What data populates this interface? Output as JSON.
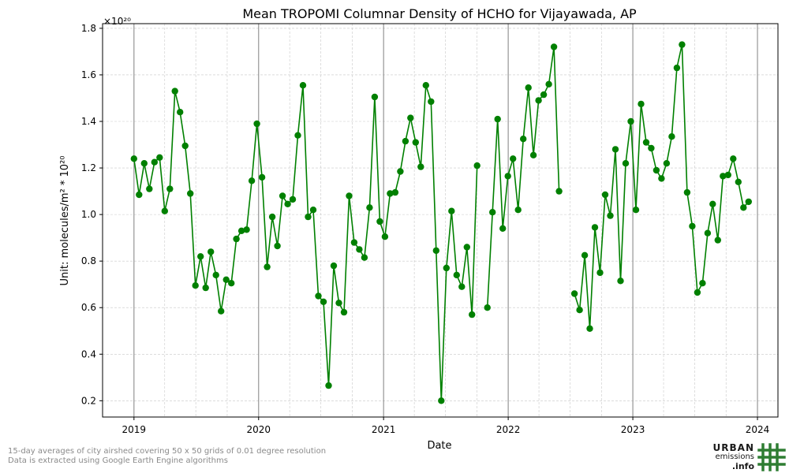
{
  "footer": {
    "note_line1": "15-day averages of city airshed covering 50 x 50 grids of 0.01 degree resolution",
    "note_line2": "Data is extracted using Google Earth Engine algorithms"
  },
  "logo": {
    "word1": "URBAN",
    "word2": "emissions",
    "word3": ".info",
    "accent": "#2e7d32"
  },
  "chart_data": {
    "type": "line",
    "title": "Mean TROPOMI Columnar Density of HCHO for Vijayawada, AP",
    "xlabel": "Date",
    "ylabel": "Unit: molecules/m² * 10²⁰",
    "y_multiplier_label": "×10²⁰",
    "x_ticks": [
      "2019",
      "2020",
      "2021",
      "2022",
      "2023",
      "2024"
    ],
    "y_ticks": [
      "0.2",
      "0.4",
      "0.6",
      "0.8",
      "1.0",
      "1.2",
      "1.4",
      "1.6",
      "1.8"
    ],
    "xlim": [
      "2018-10-01",
      "2024-03-01"
    ],
    "ylim": [
      0.13,
      1.82
    ],
    "grid": true,
    "series_color": "#008000",
    "series": [
      {
        "points": [
          [
            "2019-01-01",
            1.24
          ],
          [
            "2019-01-16",
            1.085
          ],
          [
            "2019-01-31",
            1.22
          ],
          [
            "2019-02-15",
            1.11
          ],
          [
            "2019-03-02",
            1.225
          ],
          [
            "2019-03-17",
            1.245
          ],
          [
            "2019-04-01",
            1.015
          ],
          [
            "2019-04-16",
            1.11
          ],
          [
            "2019-05-01",
            1.53
          ],
          [
            "2019-05-16",
            1.44
          ],
          [
            "2019-05-31",
            1.295
          ],
          [
            "2019-06-15",
            1.09
          ],
          [
            "2019-06-30",
            0.695
          ],
          [
            "2019-07-15",
            0.82
          ],
          [
            "2019-07-30",
            0.685
          ],
          [
            "2019-08-14",
            0.84
          ],
          [
            "2019-08-29",
            0.74
          ],
          [
            "2019-09-13",
            0.585
          ],
          [
            "2019-09-28",
            0.72
          ],
          [
            "2019-10-13",
            0.705
          ],
          [
            "2019-10-28",
            0.895
          ],
          [
            "2019-11-12",
            0.93
          ],
          [
            "2019-11-27",
            0.935
          ],
          [
            "2019-12-12",
            1.145
          ],
          [
            "2019-12-27",
            1.39
          ],
          [
            "2020-01-11",
            1.16
          ],
          [
            "2020-01-26",
            0.775
          ],
          [
            "2020-02-10",
            0.99
          ],
          [
            "2020-02-25",
            0.865
          ],
          [
            "2020-03-11",
            1.08
          ],
          [
            "2020-03-26",
            1.045
          ],
          [
            "2020-04-10",
            1.065
          ],
          [
            "2020-04-25",
            1.34
          ],
          [
            "2020-05-10",
            1.555
          ],
          [
            "2020-05-25",
            0.99
          ],
          [
            "2020-06-09",
            1.02
          ],
          [
            "2020-06-24",
            0.65
          ],
          [
            "2020-07-09",
            0.625
          ],
          [
            "2020-07-24",
            0.265
          ],
          [
            "2020-08-08",
            0.78
          ],
          [
            "2020-08-23",
            0.62
          ],
          [
            "2020-09-07",
            0.58
          ],
          [
            "2020-09-22",
            1.08
          ],
          [
            "2020-10-07",
            0.88
          ],
          [
            "2020-10-22",
            0.85
          ],
          [
            "2020-11-06",
            0.815
          ],
          [
            "2020-11-21",
            1.03
          ],
          [
            "2020-12-06",
            1.505
          ],
          [
            "2020-12-21",
            0.97
          ],
          [
            "2021-01-05",
            0.905
          ],
          [
            "2021-01-20",
            1.09
          ],
          [
            "2021-02-04",
            1.095
          ],
          [
            "2021-02-19",
            1.185
          ],
          [
            "2021-03-06",
            1.315
          ],
          [
            "2021-03-21",
            1.415
          ],
          [
            "2021-04-05",
            1.31
          ],
          [
            "2021-04-20",
            1.205
          ],
          [
            "2021-05-05",
            1.555
          ],
          [
            "2021-05-20",
            1.485
          ],
          [
            "2021-06-04",
            0.845
          ],
          [
            "2021-06-19",
            0.2
          ],
          [
            "2021-07-04",
            0.77
          ],
          [
            "2021-07-19",
            1.015
          ],
          [
            "2021-08-03",
            0.74
          ],
          [
            "2021-08-18",
            0.69
          ],
          [
            "2021-09-02",
            0.86
          ],
          [
            "2021-09-17",
            0.57
          ],
          [
            "2021-10-02",
            1.21
          ],
          null,
          [
            "2021-11-01",
            0.6
          ],
          [
            "2021-11-16",
            1.01
          ],
          [
            "2021-12-01",
            1.41
          ],
          [
            "2021-12-16",
            0.94
          ],
          [
            "2021-12-31",
            1.165
          ],
          [
            "2022-01-15",
            1.24
          ],
          [
            "2022-01-30",
            1.02
          ],
          [
            "2022-02-14",
            1.325
          ],
          [
            "2022-03-01",
            1.545
          ],
          [
            "2022-03-16",
            1.255
          ],
          [
            "2022-03-31",
            1.49
          ],
          [
            "2022-04-15",
            1.515
          ],
          [
            "2022-04-30",
            1.56
          ],
          [
            "2022-05-15",
            1.72
          ],
          [
            "2022-05-30",
            1.1
          ],
          null,
          [
            "2022-07-14",
            0.66
          ],
          [
            "2022-07-29",
            0.59
          ],
          [
            "2022-08-13",
            0.825
          ],
          [
            "2022-08-28",
            0.51
          ],
          [
            "2022-09-12",
            0.945
          ],
          [
            "2022-09-27",
            0.75
          ],
          [
            "2022-10-12",
            1.085
          ],
          [
            "2022-10-27",
            0.995
          ],
          [
            "2022-11-11",
            1.28
          ],
          [
            "2022-11-26",
            0.715
          ],
          [
            "2022-12-11",
            1.22
          ],
          [
            "2022-12-26",
            1.4
          ],
          [
            "2023-01-10",
            1.02
          ],
          [
            "2023-01-25",
            1.475
          ],
          [
            "2023-02-09",
            1.31
          ],
          [
            "2023-02-24",
            1.285
          ],
          [
            "2023-03-11",
            1.19
          ],
          [
            "2023-03-26",
            1.155
          ],
          [
            "2023-04-10",
            1.22
          ],
          [
            "2023-04-25",
            1.335
          ],
          [
            "2023-05-10",
            1.63
          ],
          [
            "2023-05-25",
            1.73
          ],
          [
            "2023-06-09",
            1.095
          ],
          [
            "2023-06-24",
            0.95
          ],
          [
            "2023-07-09",
            0.665
          ],
          [
            "2023-07-24",
            0.705
          ],
          [
            "2023-08-08",
            0.92
          ],
          [
            "2023-08-23",
            1.045
          ],
          [
            "2023-09-07",
            0.89
          ],
          [
            "2023-09-22",
            1.165
          ],
          [
            "2023-10-07",
            1.17
          ],
          [
            "2023-10-22",
            1.24
          ],
          [
            "2023-11-06",
            1.14
          ],
          [
            "2023-11-21",
            1.03
          ],
          [
            "2023-12-06",
            1.055
          ]
        ]
      }
    ]
  }
}
